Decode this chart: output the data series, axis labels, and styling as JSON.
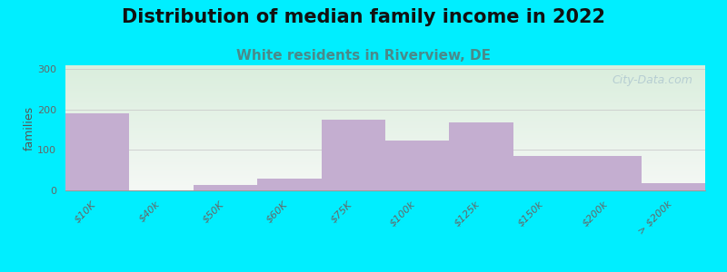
{
  "title": "Distribution of median family income in 2022",
  "subtitle": "White residents in Riverview, DE",
  "ylabel": "families",
  "categories": [
    "$10K",
    "$40k",
    "$50K",
    "$60K",
    "$75K",
    "$100k",
    "$125k",
    "$150k",
    "$200k",
    "> $200k"
  ],
  "values": [
    190,
    0,
    13,
    30,
    175,
    123,
    168,
    85,
    85,
    17
  ],
  "bar_color": "#c4aed0",
  "background_outer": "#00eeff",
  "background_plot_top": "#daeedd",
  "background_plot_bottom": "#f5f8f5",
  "grid_color": "#cccccc",
  "ylim": [
    0,
    310
  ],
  "yticks": [
    0,
    100,
    200,
    300
  ],
  "title_fontsize": 15,
  "subtitle_fontsize": 11,
  "ylabel_fontsize": 9,
  "tick_fontsize": 8,
  "watermark": "City-Data.com",
  "watermark_color": "#b0c8d0",
  "subtitle_color": "#4a8a8a"
}
